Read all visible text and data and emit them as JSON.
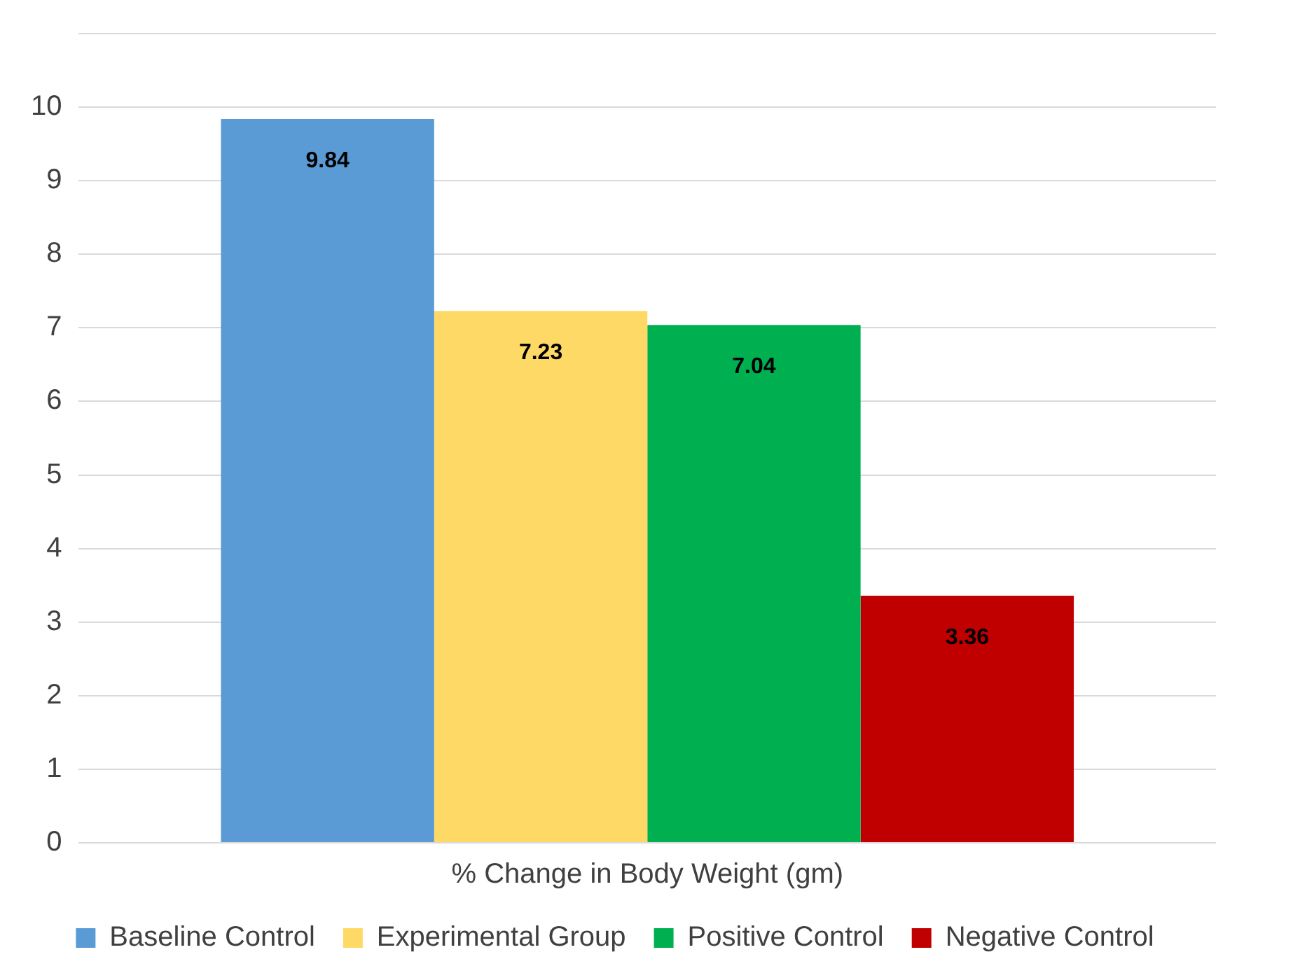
{
  "chart_data": {
    "type": "bar",
    "categories": [
      "% Change in Body Weight (gm)"
    ],
    "series": [
      {
        "name": "Baseline Control",
        "color": "#5b9bd5",
        "values": [
          9.84
        ]
      },
      {
        "name": "Experimental Group",
        "color": "#ffd966",
        "values": [
          7.23
        ]
      },
      {
        "name": "Positive Control",
        "color": "#00b050",
        "values": [
          7.04
        ]
      },
      {
        "name": "Negative Control",
        "color": "#c00000",
        "values": [
          3.36
        ]
      }
    ],
    "ylim": [
      0,
      11
    ],
    "yticks": [
      0,
      1,
      2,
      3,
      4,
      5,
      6,
      7,
      8,
      9,
      10,
      {
        "value": 11,
        "label": null
      }
    ],
    "grid": "y",
    "legend": "bottom",
    "data_labels": true
  }
}
